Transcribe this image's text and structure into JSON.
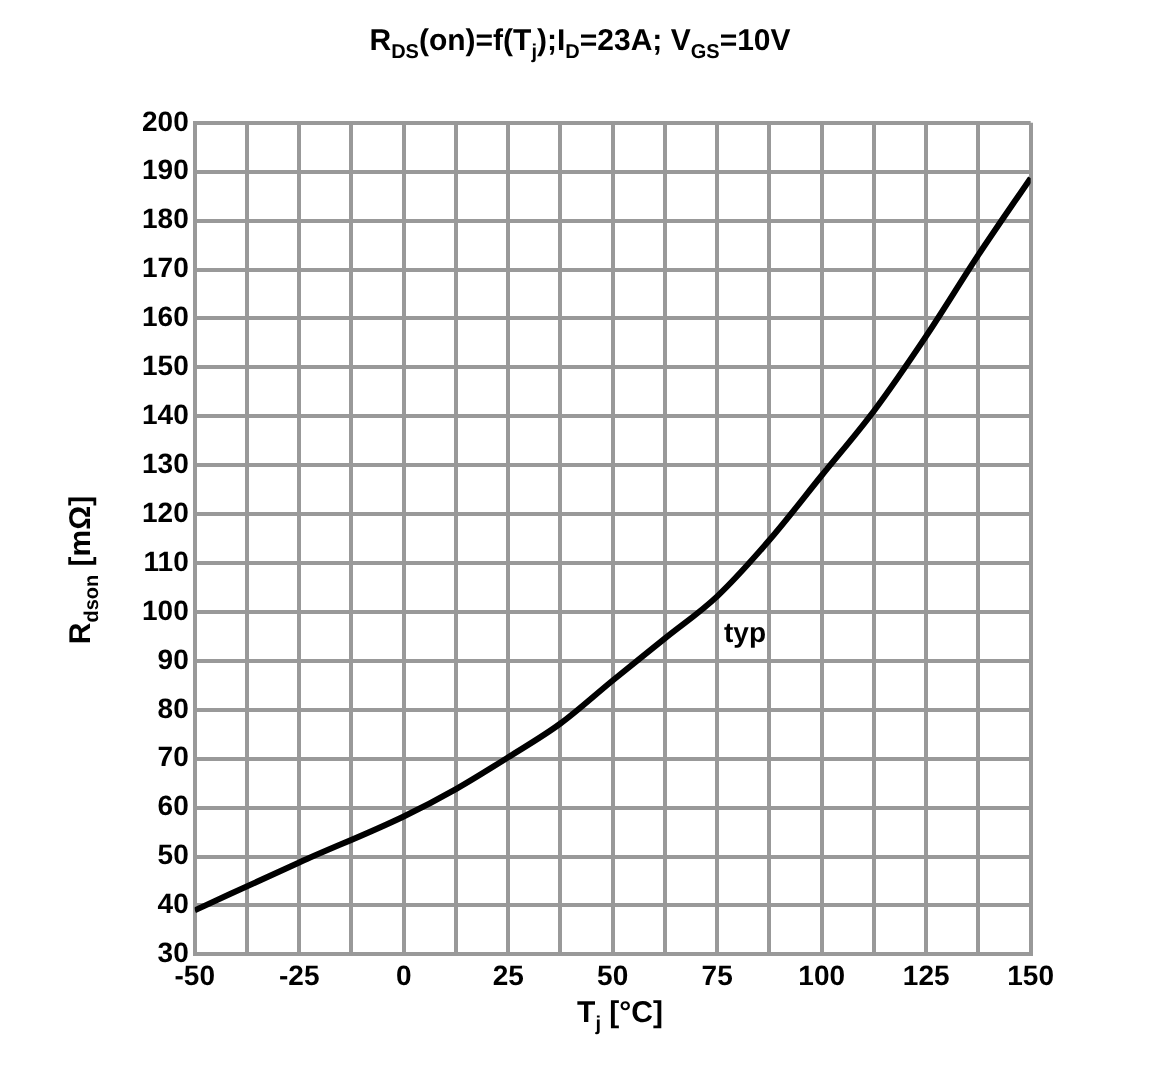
{
  "chart_data": {
    "type": "line",
    "title": "R$_{DS}$(on)=f(T$_{j}$);I$_{D}$=23A; V$_{GS}$=10V",
    "xlabel": "T$_{j}$ [°C]",
    "ylabel": "R$_{dson}$ [mΩ]",
    "x": [
      -50,
      -25,
      0,
      12.5,
      25,
      37.5,
      50,
      62.5,
      75,
      87.5,
      100,
      112.5,
      125,
      137.5,
      150
    ],
    "series": [
      {
        "color": "#000000",
        "values": [
          39,
          48.8,
          58.2,
          63.8,
          70.3,
          77.2,
          86,
          94.6,
          103.2,
          114.7,
          127.9,
          141.1,
          156.4,
          173,
          188.7
        ]
      }
    ],
    "xlim": [
      -50,
      150
    ],
    "xticks": [
      -50,
      {
        "value": -37.5,
        "label": null
      },
      -25,
      {
        "value": -12.5,
        "label": null
      },
      0,
      {
        "value": 12.5,
        "label": null
      },
      25,
      {
        "value": 37.5,
        "label": null
      },
      50,
      {
        "value": 62.5,
        "label": null
      },
      75,
      {
        "value": 87.5,
        "label": null
      },
      100,
      {
        "value": 112.5,
        "label": null
      },
      125,
      {
        "value": 137.5,
        "label": null
      },
      150
    ],
    "ylim": [
      30,
      200
    ],
    "yticks": [
      30,
      40,
      50,
      60,
      70,
      80,
      90,
      100,
      110,
      120,
      130,
      140,
      150,
      160,
      170,
      180,
      190,
      200
    ],
    "grid": true,
    "legend": false,
    "marker": "none",
    "line_style": "solid",
    "annotations": [
      "typ"
    ]
  }
}
